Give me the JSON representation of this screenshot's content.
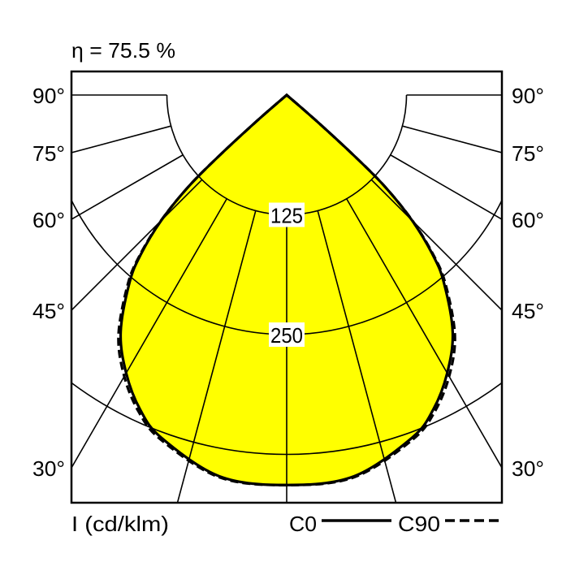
{
  "chart_data": {
    "type": "polar-line",
    "title": "η = 75.5 %",
    "unit_label": "I (cd/klm)",
    "angle_labels": [
      "90°",
      "75°",
      "60°",
      "45°",
      "30°"
    ],
    "angle_label_values": [
      90,
      75,
      60,
      45,
      30
    ],
    "radial_grid_step_deg": 15,
    "ring_values": [
      125,
      250,
      375
    ],
    "ring_labels": [
      "125",
      "250"
    ],
    "fill_color": "#ffff00",
    "line_color": "#000000",
    "series": [
      {
        "name": "C0",
        "style": "solid",
        "gamma": [
          0,
          10,
          20,
          25,
          30,
          35,
          40,
          42.5,
          45,
          47,
          48,
          49,
          50
        ],
        "intensity": [
          407,
          404,
          381,
          362,
          335,
          302,
          255,
          225,
          185,
          140,
          95,
          40,
          0
        ]
      },
      {
        "name": "C90",
        "style": "dashed",
        "gamma": [
          0,
          10,
          20,
          25,
          30,
          35,
          40,
          42.5,
          45,
          47,
          48,
          49,
          50
        ],
        "intensity": [
          407,
          405,
          383,
          365,
          339,
          306,
          258,
          227,
          186,
          140,
          95,
          40,
          0
        ]
      }
    ]
  }
}
